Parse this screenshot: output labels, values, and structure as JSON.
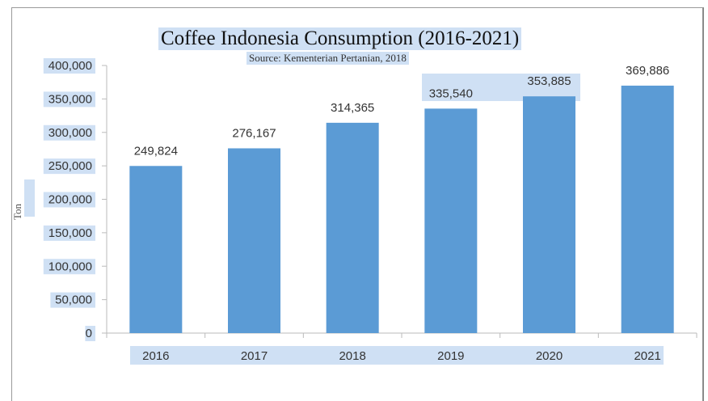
{
  "chart_data": {
    "type": "bar",
    "title": "Coffee Indonesia Consumption  (2016-2021)",
    "subtitle": "Source: Kementerian Pertanian, 2018",
    "xlabel": "",
    "ylabel": "Ton",
    "categories": [
      "2016",
      "2017",
      "2018",
      "2019",
      "2020",
      "2021"
    ],
    "values": [
      249824,
      276167,
      314365,
      335540,
      353885,
      369886
    ],
    "data_labels": [
      "249,824",
      "276,167",
      "314,365",
      "335,540",
      "353,885",
      "369,886"
    ],
    "yticks": [
      "0",
      "50,000",
      "100,000",
      "150,000",
      "200,000",
      "250,000",
      "300,000",
      "350,000",
      "400,000"
    ],
    "ylim": [
      0,
      400000
    ],
    "grid": false,
    "legend": "none",
    "colors": {
      "bar": "#5b9bd5",
      "highlight": "#cfe0f4"
    }
  }
}
